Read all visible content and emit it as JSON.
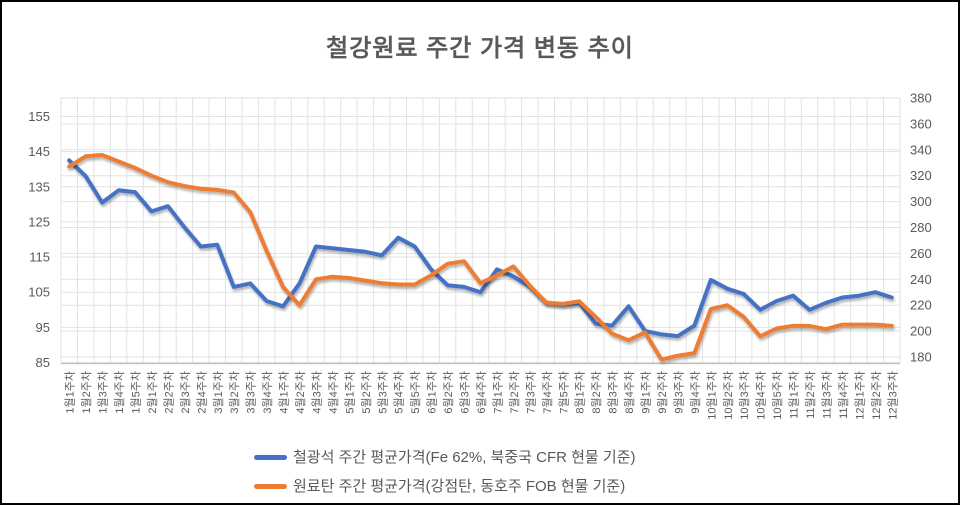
{
  "title": "철강원료 주간 가격 변동 추이",
  "chart_data": {
    "type": "line",
    "categories": [
      "1월1주차",
      "1월2주차",
      "1월3주차",
      "1월4주차",
      "1월5주차",
      "2월1주차",
      "2월2주차",
      "2월3주차",
      "2월4주차",
      "3월1주차",
      "3월2주차",
      "3월3주차",
      "3월4주차",
      "4월1주차",
      "4월2주차",
      "4월3주차",
      "4월4주차",
      "5월1주차",
      "5월2주차",
      "5월3주차",
      "5월4주차",
      "5월5주차",
      "6월1주차",
      "6월2주차",
      "6월3주차",
      "6월4주차",
      "7월1주차",
      "7월2주차",
      "7월3주차",
      "7월4주차",
      "7월5주차",
      "8월1주차",
      "8월2주차",
      "8월3주차",
      "8월4주차",
      "9월1주차",
      "9월2주차",
      "9월3주차",
      "9월4주차",
      "10월1주차",
      "10월2주차",
      "10월3주차",
      "10월4주차",
      "10월5주차",
      "11월1주차",
      "11월2주차",
      "11월3주차",
      "11월4주차",
      "12월1주차",
      "12월2주차",
      "12월3주차"
    ],
    "series": [
      {
        "id": "iron-ore",
        "name": "철광석 주간 평균가격(Fe 62%, 북중국 CFR 현물 기준)",
        "axis": "left",
        "color": "#4472C4",
        "values": [
          142.5,
          138,
          130.5,
          134,
          133.5,
          128,
          129.5,
          123.5,
          118,
          118.5,
          106.5,
          107.5,
          102.5,
          101,
          107.5,
          118,
          117.5,
          117,
          116.5,
          115.5,
          120.5,
          118,
          111.5,
          107,
          106.5,
          105,
          111.5,
          109.5,
          106.5,
          102,
          101.5,
          102,
          96,
          95.5,
          101,
          94,
          93,
          92.5,
          95.5,
          108.5,
          106,
          104.5,
          100,
          102.5,
          104,
          100,
          102,
          103.5,
          104,
          105,
          103.5
        ]
      },
      {
        "id": "coking-coal",
        "name": "원료탄 주간 평균가격(강점탄, 동호주 FOB 현물 기준)",
        "axis": "right",
        "color": "#ED7D31",
        "values": [
          327,
          335,
          336,
          331,
          326,
          320,
          315,
          312,
          310,
          309,
          307,
          292,
          262,
          234,
          220,
          240,
          242,
          241,
          239,
          237,
          236,
          236,
          243,
          252,
          254,
          237,
          243,
          250,
          235,
          222,
          221,
          223,
          211,
          198,
          193,
          199,
          178,
          181,
          183,
          217,
          220,
          211,
          196,
          202,
          204,
          204,
          201.5,
          205,
          205,
          205,
          204
        ]
      }
    ],
    "left_axis": {
      "min": 85,
      "max": 155,
      "ticks": [
        85,
        95,
        105,
        115,
        125,
        135,
        145,
        155
      ]
    },
    "right_axis": {
      "min": 180,
      "max": 380,
      "ticks": [
        180,
        200,
        220,
        240,
        260,
        280,
        300,
        320,
        340,
        360,
        380
      ]
    },
    "grid": true,
    "legend_position": "bottom",
    "text_color": "#595959",
    "grid_color": "#E2E2E2",
    "axis_line_color": "#BFBFBF"
  }
}
